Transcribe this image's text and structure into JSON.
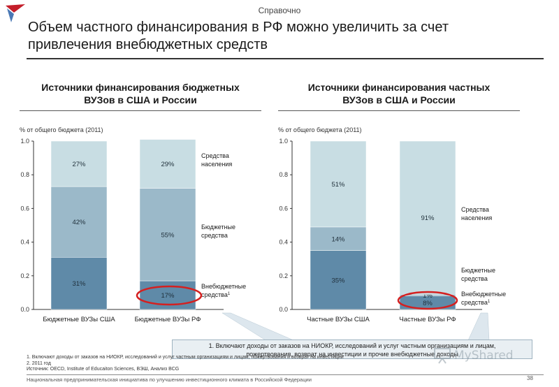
{
  "header": {
    "ref_label": "Справочно",
    "title_line1": "Объем частного финансирования в РФ можно увеличить за счет",
    "title_line2": "привлечения внебюджетных средств"
  },
  "colors": {
    "population": "#c8dde3",
    "budget": "#9bb9c9",
    "extra": "#5f8aa8",
    "highlight": "#d42020",
    "logo_red": "#c41e2a",
    "logo_blue": "#4a78b5"
  },
  "chart_data": [
    {
      "type": "bar",
      "stacked": true,
      "title_line1": "Источники финансирования бюджетных",
      "title_line2": "ВУЗов в США и России",
      "unit_label": "% от общего бюджета (2011)",
      "categories": [
        "Бюджетные ВУЗы США",
        "Бюджетные ВУЗы РФ"
      ],
      "ylim": [
        0,
        1
      ],
      "yticks": [
        "1.0",
        "0.8",
        "0.6",
        "0.4",
        "0.2",
        "0.0"
      ],
      "series": [
        {
          "name_line1": "Внебюджетные",
          "name_line2": "средства",
          "sup": "1",
          "key": "extra",
          "values": [
            0.31,
            0.17
          ],
          "labels": [
            "31%",
            "17%"
          ]
        },
        {
          "name_line1": "Бюджетные",
          "name_line2": "средства",
          "key": "budget",
          "values": [
            0.42,
            0.55
          ],
          "labels": [
            "42%",
            "55%"
          ]
        },
        {
          "name_line1": "Средства",
          "name_line2": "населения",
          "key": "population",
          "values": [
            0.27,
            0.29
          ],
          "labels": [
            "27%",
            "29%"
          ]
        }
      ]
    },
    {
      "type": "bar",
      "stacked": true,
      "title_line1": "Источники финансирования частных",
      "title_line2": "ВУЗов в США и России",
      "unit_label": "% от общего бюджета (2011)",
      "categories": [
        "Частные ВУЗы США",
        "Частные ВУЗы РФ"
      ],
      "ylim": [
        0,
        1
      ],
      "yticks": [
        "1.0",
        "0.8",
        "0.6",
        "0.4",
        "0.2",
        "0.0"
      ],
      "series": [
        {
          "name_line1": "Внебюджетные",
          "name_line2": "средства",
          "sup": "1",
          "key": "extra",
          "values": [
            0.35,
            0.08
          ],
          "labels": [
            "35%",
            "8%"
          ]
        },
        {
          "name_line1": "Бюджетные",
          "name_line2": "средства",
          "key": "budget",
          "values": [
            0.14,
            0.01
          ],
          "labels": [
            "14%",
            "1%"
          ]
        },
        {
          "name_line1": "Средства",
          "name_line2": "населения",
          "key": "population",
          "values": [
            0.51,
            0.91
          ],
          "labels": [
            "51%",
            "91%"
          ]
        }
      ]
    }
  ],
  "callout": {
    "line1": "1. Включают доходы от заказов на НИОКР,  исследований и услуг частным организациям и лицам,",
    "line2": "пожертвования, возврат на инвестиции  и прочие внебюджетные доходы"
  },
  "footnotes": {
    "line1": "1. Включают доходы от заказов на НИОКР,  исследований и услуг частным организациям и лицам, пожертвования и возврат на инвестиции",
    "line2": "2. 2011 год",
    "line3": "Источник: OECD, Institute of Educaiton Sciences, ВЭШ, Анализ BCG"
  },
  "footer": {
    "text": "Национальная предпринимательская инициатива по улучшению инвестиционного климата в Российской Федерации",
    "page": "38"
  },
  "watermark": {
    "text": "MyShared"
  }
}
